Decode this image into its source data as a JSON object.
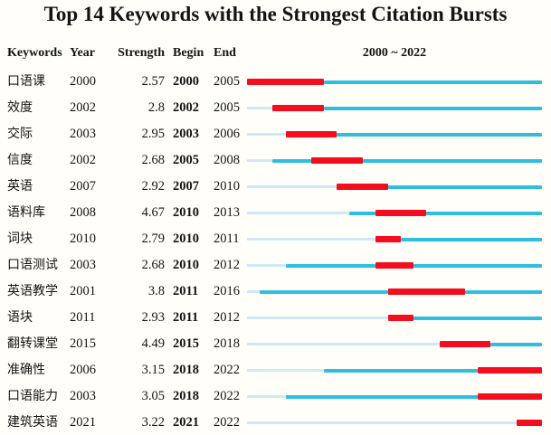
{
  "title": "Top 14 Keywords with the Strongest Citation Bursts",
  "header": {
    "keywords": "Keywords",
    "year": "Year",
    "strength": "Strength",
    "begin": "Begin",
    "end": "End",
    "range": "2000 ~ 2022"
  },
  "colors": {
    "burst": "#f30d1e",
    "active": "#30bedf",
    "inactive": "#cde9f3"
  },
  "chart_data": {
    "type": "table",
    "title": "Top 14 Keywords with the Strongest Citation Bursts",
    "columns": [
      "Keywords",
      "Year",
      "Strength",
      "Begin",
      "End",
      "2000 ~ 2022"
    ],
    "timeline_range": [
      2000,
      2022
    ],
    "legend": {
      "burst_segment": "burst period (Begin-End, red)",
      "active_segment": "years after first appearance (cyan)",
      "inactive_segment": "years before first appearance (pale blue)"
    },
    "rows": [
      {
        "keyword": "口语课",
        "year": 2000,
        "strength": "2.57",
        "begin": 2000,
        "end": 2005
      },
      {
        "keyword": "效度",
        "year": 2002,
        "strength": "2.8",
        "begin": 2002,
        "end": 2005
      },
      {
        "keyword": "交际",
        "year": 2003,
        "strength": "2.95",
        "begin": 2003,
        "end": 2006
      },
      {
        "keyword": "信度",
        "year": 2002,
        "strength": "2.68",
        "begin": 2005,
        "end": 2008
      },
      {
        "keyword": "英语",
        "year": 2007,
        "strength": "2.92",
        "begin": 2007,
        "end": 2010
      },
      {
        "keyword": "语料库",
        "year": 2008,
        "strength": "4.67",
        "begin": 2010,
        "end": 2013
      },
      {
        "keyword": "词块",
        "year": 2010,
        "strength": "2.79",
        "begin": 2010,
        "end": 2011
      },
      {
        "keyword": "口语测试",
        "year": 2003,
        "strength": "2.68",
        "begin": 2010,
        "end": 2012
      },
      {
        "keyword": "英语教学",
        "year": 2001,
        "strength": "3.8",
        "begin": 2011,
        "end": 2016
      },
      {
        "keyword": "语块",
        "year": 2011,
        "strength": "2.93",
        "begin": 2011,
        "end": 2012
      },
      {
        "keyword": "翻转课堂",
        "year": 2015,
        "strength": "4.49",
        "begin": 2015,
        "end": 2018
      },
      {
        "keyword": "准确性",
        "year": 2006,
        "strength": "3.15",
        "begin": 2018,
        "end": 2022
      },
      {
        "keyword": "口语能力",
        "year": 2003,
        "strength": "3.05",
        "begin": 2018,
        "end": 2022
      },
      {
        "keyword": "建筑英语",
        "year": 2021,
        "strength": "3.22",
        "begin": 2021,
        "end": 2022
      }
    ]
  }
}
